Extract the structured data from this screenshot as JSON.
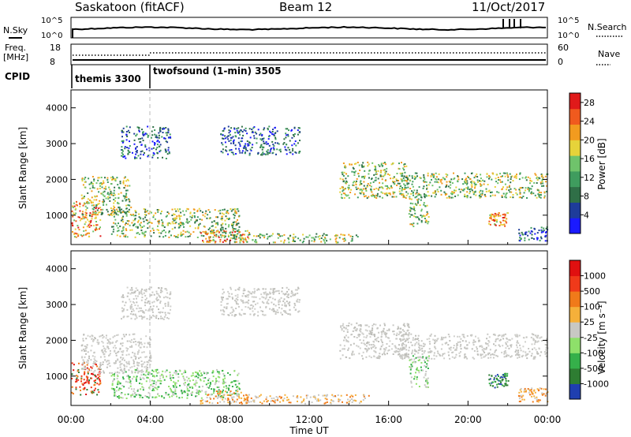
{
  "header": {
    "station": "Saskatoon (fitACF)",
    "beam": "Beam 12",
    "date": "11/Oct/2017"
  },
  "top_panels": {
    "nsky_label": "N.Sky",
    "nsky_ticks": [
      "10^5",
      "10^0"
    ],
    "nsearch_label": "N.Search",
    "nsearch_ticks": [
      "10^5",
      "10^0"
    ],
    "freq_label_1": "Freq.",
    "freq_label_2": "[MHz]",
    "freq_ticks": [
      "18",
      "8"
    ],
    "nave_label": "Nave",
    "nave_ticks": [
      "60",
      "0"
    ],
    "cpid_label": "CPID",
    "cpid_segments": [
      {
        "label": "themis 3300",
        "start_hour": 0,
        "end_hour": 4
      },
      {
        "label": "twofsound (1-min) 3505",
        "start_hour": 4,
        "end_hour": 24
      }
    ]
  },
  "chart_data": [
    {
      "type": "heatmap",
      "ylabel": "Slant Range [km]",
      "yticks": [
        "1000",
        "2000",
        "3000",
        "4000"
      ],
      "ylim": [
        180,
        4500
      ],
      "xlim": [
        0,
        24
      ],
      "colorbar": {
        "label": "Power [dB]",
        "ticks": [
          "4",
          "8",
          "12",
          "16",
          "20",
          "24",
          "28"
        ],
        "range": [
          0,
          30
        ],
        "colors": [
          "#1a1aff",
          "#1e3c9a",
          "#2f6f47",
          "#3f9c5e",
          "#6fc36b",
          "#e6d33a",
          "#f29b1f",
          "#f05a1e",
          "#e01a1a"
        ]
      },
      "echo_bands": [
        {
          "start_hour": 0.0,
          "end_hour": 1.5,
          "range_from": 400,
          "range_to": 1400,
          "level": "high"
        },
        {
          "start_hour": 0.5,
          "end_hour": 3.0,
          "range_from": 1000,
          "range_to": 2100,
          "level": "medium"
        },
        {
          "start_hour": 2.5,
          "end_hour": 5.0,
          "range_from": 2600,
          "range_to": 3500,
          "level": "low"
        },
        {
          "start_hour": 2.0,
          "end_hour": 8.5,
          "range_from": 400,
          "range_to": 1200,
          "level": "medium"
        },
        {
          "start_hour": 6.5,
          "end_hour": 9.0,
          "range_from": 250,
          "range_to": 600,
          "level": "high"
        },
        {
          "start_hour": 7.5,
          "end_hour": 11.5,
          "range_from": 2700,
          "range_to": 3500,
          "level": "low"
        },
        {
          "start_hour": 8.0,
          "end_hour": 14.5,
          "range_from": 250,
          "range_to": 500,
          "level": "medium"
        },
        {
          "start_hour": 13.5,
          "end_hour": 17.0,
          "range_from": 1500,
          "range_to": 2500,
          "level": "medium"
        },
        {
          "start_hour": 16.5,
          "end_hour": 24.0,
          "range_from": 1500,
          "range_to": 2200,
          "level": "medium"
        },
        {
          "start_hour": 17.0,
          "end_hour": 18.0,
          "range_from": 700,
          "range_to": 1600,
          "level": "medium"
        },
        {
          "start_hour": 21.0,
          "end_hour": 22.0,
          "range_from": 700,
          "range_to": 1100,
          "level": "high"
        },
        {
          "start_hour": 22.5,
          "end_hour": 24.0,
          "range_from": 300,
          "range_to": 700,
          "level": "low"
        }
      ]
    },
    {
      "type": "heatmap",
      "ylabel": "Slant Range [km]",
      "yticks": [
        "1000",
        "2000",
        "3000",
        "4000"
      ],
      "ylim": [
        180,
        4500
      ],
      "xlim": [
        0,
        24
      ],
      "xlabel": "Time UT",
      "xticks": [
        "00:00",
        "04:00",
        "08:00",
        "12:00",
        "16:00",
        "20:00",
        "00:00"
      ],
      "colorbar": {
        "label": "Velocity [m s⁻¹]",
        "ticks": [
          "1000",
          "500",
          "100",
          "25",
          "-25",
          "-100",
          "-500",
          "-1000"
        ],
        "colors": [
          "#1f3fb0",
          "#2e7d32",
          "#35b04a",
          "#8ee06a",
          "#c8c8c4",
          "#f5b03a",
          "#f07a1a",
          "#f03a1a",
          "#e01010"
        ]
      },
      "echo_bands": [
        {
          "start_hour": 0.0,
          "end_hour": 1.5,
          "range_from": 500,
          "range_to": 1400,
          "velocity_class": "neg_large"
        },
        {
          "start_hour": 0.5,
          "end_hour": 4.0,
          "range_from": 1100,
          "range_to": 2200,
          "velocity_class": "ground"
        },
        {
          "start_hour": 2.5,
          "end_hour": 5.0,
          "range_from": 2600,
          "range_to": 3500,
          "velocity_class": "ground"
        },
        {
          "start_hour": 2.0,
          "end_hour": 8.5,
          "range_from": 400,
          "range_to": 1200,
          "velocity_class": "pos_small"
        },
        {
          "start_hour": 6.5,
          "end_hour": 9.0,
          "range_from": 250,
          "range_to": 600,
          "velocity_class": "neg_small"
        },
        {
          "start_hour": 7.5,
          "end_hour": 11.5,
          "range_from": 2700,
          "range_to": 3500,
          "velocity_class": "ground"
        },
        {
          "start_hour": 8.0,
          "end_hour": 15.0,
          "range_from": 250,
          "range_to": 500,
          "velocity_class": "neg_small"
        },
        {
          "start_hour": 13.5,
          "end_hour": 17.0,
          "range_from": 1500,
          "range_to": 2500,
          "velocity_class": "ground"
        },
        {
          "start_hour": 16.5,
          "end_hour": 24.0,
          "range_from": 1500,
          "range_to": 2200,
          "velocity_class": "ground"
        },
        {
          "start_hour": 17.0,
          "end_hour": 18.0,
          "range_from": 700,
          "range_to": 1600,
          "velocity_class": "pos_small"
        },
        {
          "start_hour": 21.0,
          "end_hour": 22.0,
          "range_from": 700,
          "range_to": 1100,
          "velocity_class": "pos_large"
        },
        {
          "start_hour": 22.5,
          "end_hour": 24.0,
          "range_from": 300,
          "range_to": 700,
          "velocity_class": "neg_small"
        }
      ]
    }
  ]
}
